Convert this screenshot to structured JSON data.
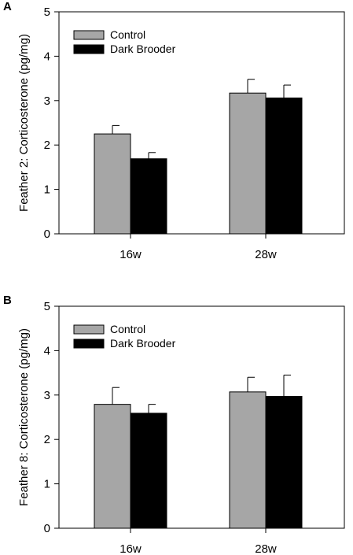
{
  "chart_data": [
    {
      "panel_label": "A",
      "type": "bar",
      "categories": [
        "16w",
        "28w"
      ],
      "series": [
        {
          "name": "Control",
          "color": "#a6a6a6",
          "values": [
            2.25,
            3.17
          ],
          "errors": [
            0.19,
            0.31
          ]
        },
        {
          "name": "Dark Brooder",
          "color": "#000000",
          "values": [
            1.69,
            3.06
          ],
          "errors": [
            0.14,
            0.29
          ]
        }
      ],
      "ylabel": "Feather 2: Corticosterone (pg/mg)",
      "xlabel": "",
      "ylim": [
        0,
        5
      ],
      "yticks": [
        "0",
        "1",
        "2",
        "3",
        "4",
        "5"
      ],
      "legend_position": "top-left",
      "grid": false
    },
    {
      "panel_label": "B",
      "type": "bar",
      "categories": [
        "16w",
        "28w"
      ],
      "series": [
        {
          "name": "Control",
          "color": "#a6a6a6",
          "values": [
            2.79,
            3.07
          ],
          "errors": [
            0.38,
            0.33
          ]
        },
        {
          "name": "Dark Brooder",
          "color": "#000000",
          "values": [
            2.59,
            2.97
          ],
          "errors": [
            0.2,
            0.48
          ]
        }
      ],
      "ylabel": "Feather 8: Corticosterone (pg/mg)",
      "xlabel": "",
      "ylim": [
        0,
        5
      ],
      "yticks": [
        "0",
        "1",
        "2",
        "3",
        "4",
        "5"
      ],
      "legend_position": "top-left",
      "grid": false
    }
  ]
}
